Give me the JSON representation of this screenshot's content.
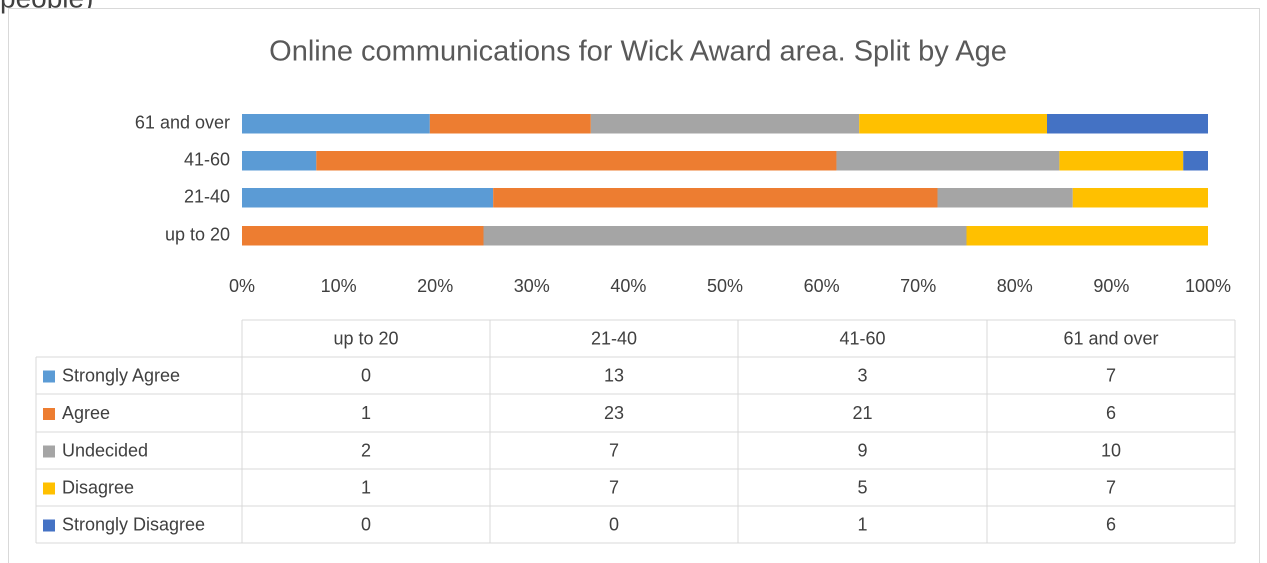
{
  "header_fragment": "people)",
  "chart_data": {
    "type": "stacked_bar_100",
    "title": "Online communications for Wick Award area. Split by Age",
    "categories": [
      "up to 20",
      "21-40",
      "41-60",
      "61 and over"
    ],
    "series": [
      {
        "name": "Strongly Agree",
        "color": "#5b9bd5",
        "values": [
          0,
          13,
          3,
          7
        ]
      },
      {
        "name": "Agree",
        "color": "#ed7d31",
        "values": [
          1,
          23,
          21,
          6
        ]
      },
      {
        "name": "Undecided",
        "color": "#a5a5a5",
        "values": [
          2,
          7,
          9,
          10
        ]
      },
      {
        "name": "Disagree",
        "color": "#ffc000",
        "values": [
          1,
          7,
          5,
          7
        ]
      },
      {
        "name": "Strongly Disagree",
        "color": "#4472c4",
        "values": [
          0,
          0,
          1,
          6
        ]
      }
    ],
    "xlim": [
      0,
      100
    ],
    "xticks": [
      {
        "value": 0,
        "label": "0%"
      },
      {
        "value": 10,
        "label": "10%"
      },
      {
        "value": 20,
        "label": "20%"
      },
      {
        "value": 30,
        "label": "30%"
      },
      {
        "value": 40,
        "label": "40%"
      },
      {
        "value": 50,
        "label": "50%"
      },
      {
        "value": 60,
        "label": "60%"
      },
      {
        "value": 70,
        "label": "70%"
      },
      {
        "value": 80,
        "label": "80%"
      },
      {
        "value": 90,
        "label": "90%"
      },
      {
        "value": 100,
        "label": "100%"
      }
    ],
    "data_table": true
  }
}
